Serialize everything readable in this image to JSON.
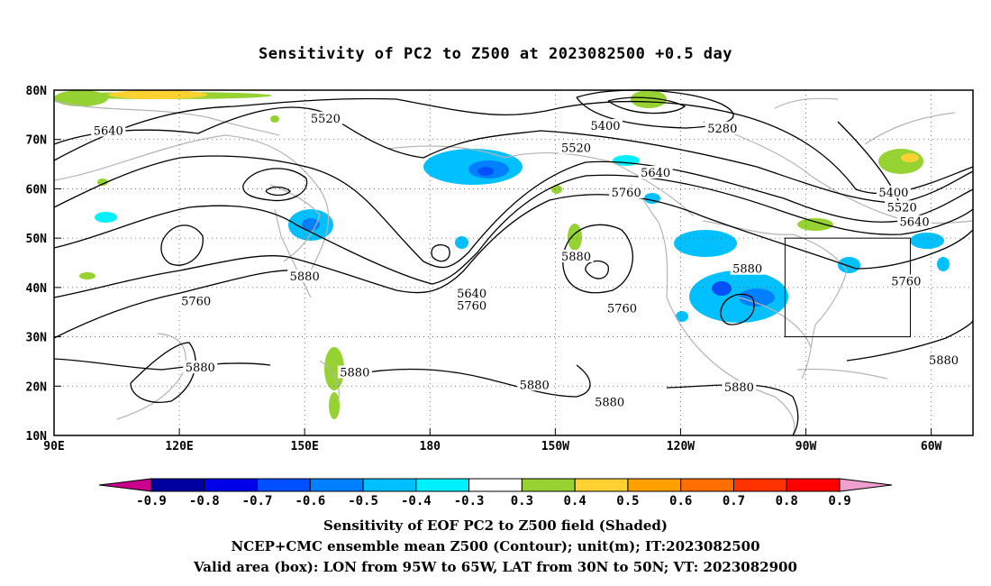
{
  "title": "Sensitivity of PC2 to Z500 at 2023082500 +0.5 day",
  "lat_labels": [
    "80N",
    "70N",
    "60N",
    "50N",
    "40N",
    "30N",
    "20N",
    "10N"
  ],
  "lon_labels": [
    "90E",
    "120E",
    "150E",
    "180",
    "150W",
    "120W",
    "90W",
    "60W"
  ],
  "colorbar": {
    "labels": [
      "-0.9",
      "-0.8",
      "-0.7",
      "-0.6",
      "-0.5",
      "-0.4",
      "-0.3",
      "0.3",
      "0.4",
      "0.5",
      "0.6",
      "0.7",
      "0.8",
      "0.9"
    ],
    "colors": [
      "#c8008c",
      "#0000a0",
      "#0000e6",
      "#0050ff",
      "#0080ff",
      "#00c0ff",
      "#00f0ff",
      "#ffffff",
      "#96d232",
      "#ffd232",
      "#ffa000",
      "#ff6e00",
      "#ff3200",
      "#ff0000",
      "#f0a0d0"
    ]
  },
  "contour_labels": [
    {
      "text": "5640",
      "lon": 103,
      "lat": 71.5
    },
    {
      "text": "5520",
      "lon": 155,
      "lat": 74
    },
    {
      "text": "5400",
      "lon": 222,
      "lat": 72.5
    },
    {
      "text": "5280",
      "lon": 250,
      "lat": 72
    },
    {
      "text": "5520",
      "lon": 215,
      "lat": 68
    },
    {
      "text": "5640",
      "lon": 234,
      "lat": 63
    },
    {
      "text": "5760",
      "lon": 227,
      "lat": 59
    },
    {
      "text": "5400",
      "lon": 291,
      "lat": 59
    },
    {
      "text": "5520",
      "lon": 293,
      "lat": 56
    },
    {
      "text": "5640",
      "lon": 296,
      "lat": 53
    },
    {
      "text": "5880",
      "lon": 256,
      "lat": 43.5
    },
    {
      "text": "5760",
      "lon": 294,
      "lat": 41
    },
    {
      "text": "5880",
      "lon": 150,
      "lat": 42
    },
    {
      "text": "5760",
      "lon": 124,
      "lat": 37
    },
    {
      "text": "5640",
      "lon": 190,
      "lat": 38.5
    },
    {
      "text": "5760",
      "lon": 190,
      "lat": 36
    },
    {
      "text": "5880",
      "lon": 215,
      "lat": 46
    },
    {
      "text": "5760",
      "lon": 226,
      "lat": 35.5
    },
    {
      "text": "5880",
      "lon": 125,
      "lat": 23.5
    },
    {
      "text": "5880",
      "lon": 162,
      "lat": 22.5
    },
    {
      "text": "5880",
      "lon": 205,
      "lat": 20
    },
    {
      "text": "5880",
      "lon": 223,
      "lat": 16.5
    },
    {
      "text": "5880",
      "lon": 254,
      "lat": 19.5
    },
    {
      "text": "5880",
      "lon": 303,
      "lat": 25
    }
  ],
  "valid_box": {
    "lon_min": 265,
    "lon_max": 295,
    "lat_min": 30,
    "lat_max": 50
  },
  "footer": {
    "line1": "Sensitivity of EOF PC2 to Z500 field (Shaded)",
    "line2": "NCEP+CMC ensemble mean Z500 (Contour); unit(m); IT:2023082500",
    "line3": "Valid area (box): LON from 95W to 65W, LAT from 30N to 50N; VT: 2023082900"
  }
}
